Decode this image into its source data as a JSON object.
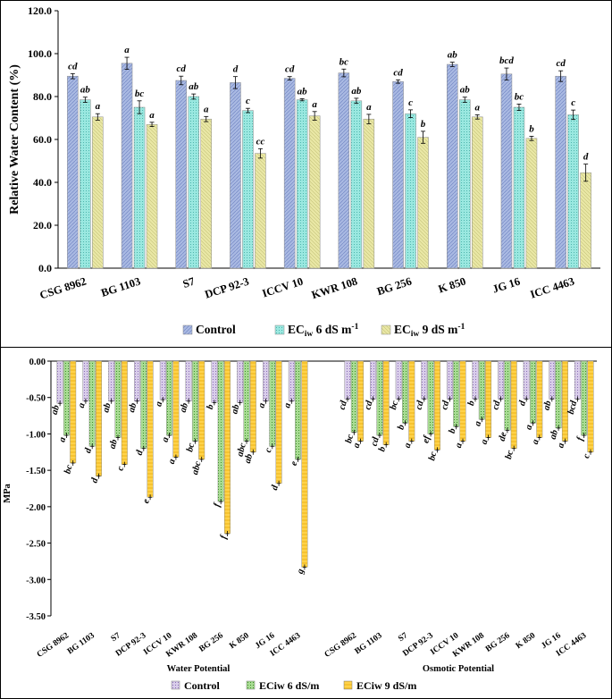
{
  "chart_data": [
    {
      "type": "bar",
      "ylabel": "Relative Water Content (%)",
      "ylim": [
        0,
        120
      ],
      "ytick_labels": [
        "0.0",
        "20.0",
        "40.0",
        "60.0",
        "80.0",
        "100.0",
        "120.0"
      ],
      "yticks": [
        0,
        20,
        40,
        60,
        80,
        100,
        120
      ],
      "grid": false,
      "legend_position": "bottom",
      "categories": [
        "CSG 8962",
        "BG 1103",
        "S7",
        "DCP 92-3",
        "ICCV 10",
        "KWR 108",
        "BG 256",
        "K 850",
        "JG 16",
        "ICC 4463"
      ],
      "legend": {
        "control": "Control",
        "ec_prefix": "EC",
        "ec_sub": "iw",
        "ec6_suffix": " 6 dS m",
        "ec9_suffix": " 9 dS m",
        "unit_exp": "-1"
      },
      "series": [
        {
          "name": "Control",
          "values": [
            89.5,
            95.5,
            87.5,
            86.5,
            88.5,
            91.0,
            87.0,
            95.0,
            90.5,
            89.5
          ],
          "errors": [
            1.2,
            2.8,
            2.0,
            2.8,
            0.8,
            1.8,
            0.8,
            1.0,
            2.8,
            2.5
          ],
          "letters": [
            "cd",
            "a",
            "cd",
            "d",
            "cd",
            "bc",
            "cd",
            "ab",
            "bcd",
            "cd"
          ]
        },
        {
          "name": "ECiw 6 dS m-1",
          "values": [
            78.5,
            75.0,
            80.0,
            73.5,
            78.5,
            78.0,
            72.0,
            78.5,
            75.0,
            71.5
          ],
          "errors": [
            1.2,
            3.0,
            1.2,
            1.0,
            0.5,
            1.2,
            1.8,
            1.2,
            1.5,
            2.2
          ],
          "letters": [
            "ab",
            "bc",
            "ab",
            "c",
            "ab",
            "ab",
            "c",
            "ab",
            "bc",
            "c"
          ]
        },
        {
          "name": "ECiw 9 dS m-1",
          "values": [
            70.5,
            67.0,
            69.5,
            53.5,
            71.0,
            69.5,
            61.0,
            70.5,
            60.5,
            44.5
          ],
          "errors": [
            1.5,
            1.0,
            1.2,
            2.2,
            2.0,
            2.2,
            2.8,
            1.0,
            1.0,
            4.0
          ],
          "letters": [
            "a",
            "a",
            "a",
            "cc",
            "a",
            "a",
            "b",
            "a",
            "b",
            "d"
          ]
        }
      ],
      "colors": {
        "control": "#a9b9e2",
        "ec6": "#9ae8e0",
        "ec9": "#e8e6a4"
      }
    },
    {
      "type": "bar",
      "ylabel": "MPa",
      "ylim": [
        -3.5,
        0
      ],
      "ytick_labels": [
        "0.00",
        "-0.50",
        "-1.00",
        "-1.50",
        "-2.00",
        "-2.50",
        "-3.00",
        "-3.50"
      ],
      "yticks": [
        0,
        -0.5,
        -1.0,
        -1.5,
        -2.0,
        -2.5,
        -3.0,
        -3.5
      ],
      "grid": false,
      "legend_position": "bottom",
      "groups": [
        {
          "name": "Water Potential",
          "categories": [
            "CSG 8962",
            "BG 1103",
            "S7",
            "DCP 92-3",
            "ICCV 10",
            "KWR 108",
            "BG 256",
            "K 850",
            "JG 16",
            "ICC 4463"
          ],
          "series": [
            {
              "name": "Control",
              "values": [
                -0.58,
                -0.55,
                -0.55,
                -0.55,
                -0.53,
                -0.55,
                -0.57,
                -0.57,
                -0.55,
                -0.55
              ],
              "letters": [
                "ab",
                "a",
                "ab",
                "ab",
                "a",
                "ab",
                "b",
                "ab",
                "a",
                "a"
              ]
            },
            {
              "name": "ECiw 6 dS/m",
              "values": [
                -1.02,
                -1.17,
                -1.05,
                -1.2,
                -1.02,
                -1.1,
                -1.93,
                -1.1,
                -1.17,
                -1.35
              ],
              "letters": [
                "a",
                "d",
                "ab",
                "d",
                "a",
                "bc",
                "f",
                "abc",
                "c",
                "e"
              ]
            },
            {
              "name": "ECiw 9 dS/m",
              "values": [
                -1.4,
                -1.58,
                -1.42,
                -1.87,
                -1.32,
                -1.35,
                -2.37,
                -1.25,
                -1.68,
                -2.83
              ],
              "letters": [
                "bc",
                "d",
                "c",
                "e",
                "a",
                "abc",
                "f",
                "ab",
                "d",
                "g"
              ]
            }
          ]
        },
        {
          "name": "Osmotic Potential",
          "categories": [
            "CSG 8962",
            "BG 1103",
            "S7",
            "DCP 92-3",
            "ICCV 10",
            "KWR 108",
            "BG 256",
            "K 850",
            "JG 16",
            "ICC 4463"
          ],
          "series": [
            {
              "name": "Control",
              "values": [
                -0.52,
                -0.52,
                -0.52,
                -0.52,
                -0.52,
                -0.52,
                -0.52,
                -0.52,
                -0.52,
                -0.52
              ],
              "letters": [
                "cd",
                "cd",
                "bc",
                "cd",
                "cd",
                "b",
                "cd",
                "d",
                "ab",
                "bcd"
              ]
            },
            {
              "name": "ECiw 6 dS/m",
              "values": [
                -0.98,
                -1.02,
                -0.85,
                -1.0,
                -0.9,
                -0.8,
                -0.95,
                -0.85,
                -0.92,
                -1.02
              ],
              "letters": [
                "bc",
                "cd",
                "b",
                "ef",
                "b",
                "a",
                "de",
                "a",
                "ab",
                "f"
              ]
            },
            {
              "name": "ECiw 9 dS/m",
              "values": [
                -1.1,
                -1.15,
                -1.1,
                -1.22,
                -1.1,
                -1.05,
                -1.2,
                -1.05,
                -1.1,
                -1.25
              ],
              "letters": [
                "a",
                "b",
                "a",
                "bc",
                "a",
                "a",
                "bc",
                "a",
                "a",
                "c"
              ]
            }
          ]
        }
      ],
      "legend": {
        "control": "Control",
        "ec6": "ECiw 6 dS/m",
        "ec9": "ECiw 9 dS/m"
      },
      "colors": {
        "control": "#c9b7de",
        "ec6": "#8fd07a",
        "ec9": "#ffd24a"
      }
    }
  ]
}
